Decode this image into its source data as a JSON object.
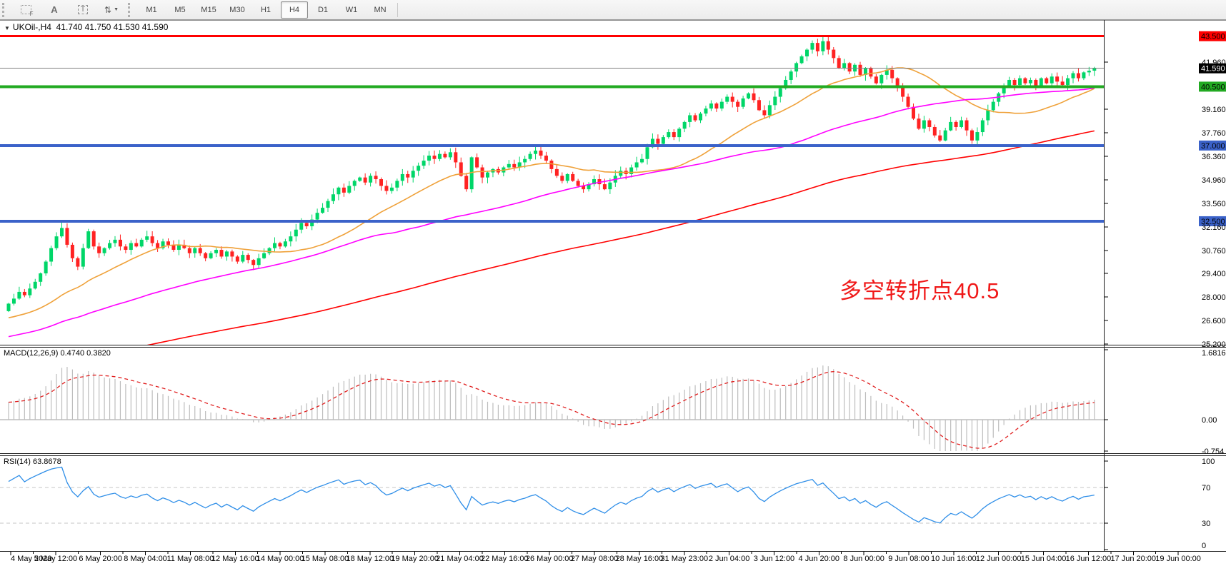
{
  "toolbar": {
    "tool_buttons": [
      {
        "name": "fibonacci-grid-icon",
        "glyph": "F"
      },
      {
        "name": "text-annotation-icon",
        "glyph": "A"
      },
      {
        "name": "text-label-icon",
        "glyph": "T"
      },
      {
        "name": "arrow-tools-icon",
        "glyph": "⇅"
      }
    ],
    "dropdown_caret": "▼",
    "timeframes": [
      {
        "label": "M1",
        "active": false
      },
      {
        "label": "M5",
        "active": false
      },
      {
        "label": "M15",
        "active": false
      },
      {
        "label": "M30",
        "active": false
      },
      {
        "label": "H1",
        "active": false
      },
      {
        "label": "H4",
        "active": true
      },
      {
        "label": "D1",
        "active": false
      },
      {
        "label": "W1",
        "active": false
      },
      {
        "label": "MN",
        "active": false
      }
    ]
  },
  "symbol_info": {
    "collapse_icon": "▼",
    "display": "UKOil-,H4  41.740 41.750 41.530 41.590",
    "symbol": "UKOil-",
    "period": "H4",
    "open": "41.740",
    "high": "41.750",
    "low": "41.530",
    "close": "41.590"
  },
  "chart_data": {
    "type": "candlestick",
    "symbol": "UKOil-",
    "timeframe": "H4",
    "colors": {
      "bull": "#00D668",
      "bear": "#FF2222",
      "background": "#FFFFFF",
      "axis_text": "#000000"
    },
    "price_axis_ticks": [
      {
        "label": "41.960",
        "value": 41.96
      },
      {
        "label": "39.160",
        "value": 39.16
      },
      {
        "label": "37.760",
        "value": 37.76
      },
      {
        "label": "36.360",
        "value": 36.36
      },
      {
        "label": "34.960",
        "value": 34.96
      },
      {
        "label": "33.560",
        "value": 33.56
      },
      {
        "label": "32.160",
        "value": 32.16
      },
      {
        "label": "30.760",
        "value": 30.76
      },
      {
        "label": "29.400",
        "value": 29.4
      },
      {
        "label": "28.000",
        "value": 28.0
      },
      {
        "label": "26.600",
        "value": 26.6
      },
      {
        "label": "25.200",
        "value": 25.2
      }
    ],
    "levels": [
      {
        "label": "43.500",
        "value": 43.5,
        "color": "#FF0000",
        "width": 3
      },
      {
        "label": "40.500",
        "value": 40.5,
        "color": "#22AA22",
        "width": 4
      },
      {
        "label": "37.000",
        "value": 37.0,
        "color": "#3B62C9",
        "width": 4
      },
      {
        "label": "32.500",
        "value": 32.5,
        "color": "#3B62C9",
        "width": 4
      }
    ],
    "current_price": {
      "label": "41.590",
      "value": 41.59,
      "line_color": "#808080",
      "label_bg": "#000000",
      "label_fg": "#FFFFFF"
    },
    "moving_averages": [
      {
        "period": 24,
        "color": "#EFA139"
      },
      {
        "period": 62,
        "color": "#FF00FF"
      },
      {
        "period": 150,
        "color": "#FF0000"
      }
    ],
    "annotation": {
      "text": "多空转折点40.5",
      "color": "#F01818"
    },
    "time_axis_labels": [
      "4 May 2020",
      "5 May 12:00",
      "6 May 20:00",
      "8 May 04:00",
      "11 May 08:00",
      "12 May 16:00",
      "14 May 00:00",
      "15 May 08:00",
      "18 May 12:00",
      "19 May 20:00",
      "21 May 04:00",
      "22 May 16:00",
      "26 May 00:00",
      "27 May 08:00",
      "28 May 16:00",
      "31 May 23:00",
      "2 Jun 04:00",
      "3 Jun 12:00",
      "4 Jun 20:00",
      "8 Jun 00:00",
      "9 Jun 08:00",
      "10 Jun 16:00",
      "12 Jun 00:00",
      "15 Jun 04:00",
      "16 Jun 12:00",
      "17 Jun 20:00",
      "19 Jun 00:00"
    ],
    "closes": [
      27.6,
      27.9,
      28.3,
      28.1,
      28.5,
      28.9,
      29.4,
      30.1,
      30.9,
      31.6,
      32.1,
      31.1,
      30.3,
      29.8,
      30.9,
      31.9,
      31.0,
      30.6,
      30.9,
      31.2,
      31.4,
      31.0,
      30.8,
      31.2,
      31.0,
      31.4,
      31.6,
      31.2,
      30.9,
      31.3,
      31.1,
      30.8,
      31.1,
      30.9,
      30.6,
      30.9,
      30.6,
      30.3,
      30.6,
      30.8,
      30.4,
      30.7,
      30.4,
      30.1,
      30.5,
      30.2,
      29.9,
      30.3,
      30.6,
      30.9,
      31.2,
      31.0,
      31.3,
      31.6,
      32.0,
      32.4,
      32.2,
      32.6,
      33.0,
      33.3,
      33.7,
      34.1,
      34.5,
      34.2,
      34.6,
      34.9,
      35.1,
      34.8,
      35.2,
      35.0,
      34.6,
      34.3,
      34.5,
      34.9,
      35.3,
      35.1,
      35.5,
      35.8,
      36.1,
      36.4,
      36.2,
      36.5,
      36.3,
      36.6,
      36.0,
      35.2,
      34.4,
      36.3,
      35.7,
      35.1,
      35.4,
      35.6,
      35.4,
      35.7,
      35.9,
      35.7,
      36.0,
      36.2,
      36.5,
      36.7,
      36.4,
      36.1,
      35.6,
      35.2,
      34.9,
      35.3,
      34.9,
      34.6,
      34.4,
      34.7,
      35.0,
      34.7,
      34.4,
      34.8,
      35.2,
      35.5,
      35.3,
      35.7,
      36.0,
      36.2,
      36.9,
      37.4,
      37.1,
      37.5,
      37.8,
      37.5,
      38.0,
      38.4,
      38.8,
      38.5,
      38.9,
      39.2,
      39.5,
      39.2,
      39.6,
      39.9,
      39.6,
      39.3,
      39.8,
      40.1,
      39.7,
      39.1,
      38.8,
      39.4,
      39.9,
      40.4,
      40.9,
      41.4,
      41.9,
      42.3,
      42.7,
      43.1,
      42.6,
      43.2,
      42.7,
      42.2,
      41.6,
      41.9,
      41.4,
      41.8,
      41.2,
      41.6,
      41.1,
      40.7,
      41.2,
      41.5,
      41.0,
      40.5,
      39.9,
      39.3,
      38.6,
      38.0,
      38.5,
      38.1,
      37.6,
      37.3,
      37.9,
      38.4,
      38.1,
      38.5,
      37.9,
      37.3,
      37.8,
      38.5,
      39.1,
      39.6,
      40.1,
      40.5,
      40.9,
      40.6,
      41.0,
      40.7,
      40.9,
      40.5,
      41.0,
      40.7,
      41.1,
      40.8,
      40.6,
      41.0,
      41.3,
      41.0,
      41.35,
      41.45,
      41.59
    ]
  },
  "macd_panel": {
    "display": "MACD(12,26,9) 0.4740 0.3820",
    "name": "MACD",
    "params": "12,26,9",
    "values": [
      "0.4740",
      "0.3820"
    ],
    "axis": [
      {
        "label": "1.6816",
        "value": 1.6816
      },
      {
        "label": "0.00",
        "value": 0
      },
      {
        "label": "-0.754",
        "value": -0.754
      }
    ],
    "histogram_color": "#BDBDBD",
    "signal_color": "#E02020"
  },
  "rsi_panel": {
    "display": "RSI(14) 63.8678",
    "name": "RSI",
    "period": "14",
    "value": "63.8678",
    "axis": [
      {
        "label": "100",
        "value": 100
      },
      {
        "label": "70",
        "value": 70
      },
      {
        "label": "30",
        "value": 30
      },
      {
        "label": "0",
        "value": 0
      }
    ],
    "dashed_levels": [
      70,
      30
    ],
    "line_color": "#2E8EE8"
  }
}
